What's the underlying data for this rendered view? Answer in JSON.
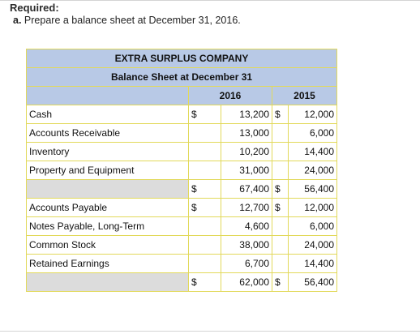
{
  "required": {
    "title": "Required:",
    "item_letter": "a.",
    "item_text": "Prepare a balance sheet at December 31, 2016."
  },
  "table": {
    "company": "EXTRA SURPLUS COMPANY",
    "statement": "Balance Sheet at December 31",
    "years": [
      "2016",
      "2015"
    ],
    "assets": [
      {
        "label": "Cash",
        "sym2016": "$",
        "v2016": "13,200",
        "sym2015": "$",
        "v2015": "12,000"
      },
      {
        "label": "Accounts Receivable",
        "sym2016": "",
        "v2016": "13,000",
        "sym2015": "",
        "v2015": "6,000"
      },
      {
        "label": "Inventory",
        "sym2016": "",
        "v2016": "10,200",
        "sym2015": "",
        "v2015": "14,400"
      },
      {
        "label": "Property and Equipment",
        "sym2016": "",
        "v2016": "31,000",
        "sym2015": "",
        "v2015": "24,000"
      }
    ],
    "total_assets": {
      "sym2016": "$",
      "v2016": "67,400",
      "sym2015": "$",
      "v2015": "56,400"
    },
    "liabilities_equity": [
      {
        "label": "Accounts Payable",
        "sym2016": "$",
        "v2016": "12,700",
        "sym2015": "$",
        "v2015": "12,000"
      },
      {
        "label": "Notes Payable, Long-Term",
        "sym2016": "",
        "v2016": "4,600",
        "sym2015": "",
        "v2015": "6,000"
      },
      {
        "label": "Common Stock",
        "sym2016": "",
        "v2016": "38,000",
        "sym2015": "",
        "v2015": "24,000"
      },
      {
        "label": "Retained Earnings",
        "sym2016": "",
        "v2016": "6,700",
        "sym2015": "",
        "v2015": "14,400"
      }
    ],
    "total_liabilities_equity": {
      "sym2016": "$",
      "v2016": "62,000",
      "sym2015": "$",
      "v2015": "56,400"
    }
  }
}
